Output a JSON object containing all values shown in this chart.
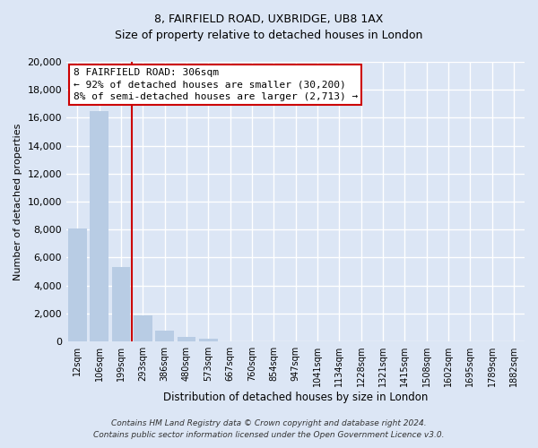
{
  "title": "8, FAIRFIELD ROAD, UXBRIDGE, UB8 1AX",
  "subtitle": "Size of property relative to detached houses in London",
  "xlabel": "Distribution of detached houses by size in London",
  "ylabel": "Number of detached properties",
  "bar_labels": [
    "12sqm",
    "106sqm",
    "199sqm",
    "293sqm",
    "386sqm",
    "480sqm",
    "573sqm",
    "667sqm",
    "760sqm",
    "854sqm",
    "947sqm",
    "1041sqm",
    "1134sqm",
    "1228sqm",
    "1321sqm",
    "1415sqm",
    "1508sqm",
    "1602sqm",
    "1695sqm",
    "1789sqm",
    "1882sqm"
  ],
  "bar_values": [
    8100,
    16500,
    5300,
    1850,
    780,
    300,
    200,
    0,
    0,
    0,
    0,
    0,
    0,
    0,
    0,
    0,
    0,
    0,
    0,
    0,
    0
  ],
  "bar_color": "#b8cce4",
  "vline_pos": 2.5,
  "annotation_title": "8 FAIRFIELD ROAD: 306sqm",
  "annotation_line1": "← 92% of detached houses are smaller (30,200)",
  "annotation_line2": "8% of semi-detached houses are larger (2,713) →",
  "annotation_box_color": "#ffffff",
  "annotation_box_edge": "#cc0000",
  "vline_color": "#cc0000",
  "ylim": [
    0,
    20000
  ],
  "yticks": [
    0,
    2000,
    4000,
    6000,
    8000,
    10000,
    12000,
    14000,
    16000,
    18000,
    20000
  ],
  "footer1": "Contains HM Land Registry data © Crown copyright and database right 2024.",
  "footer2": "Contains public sector information licensed under the Open Government Licence v3.0.",
  "bg_color": "#dce6f5",
  "grid_color": "#ffffff",
  "title_fontsize": 9,
  "subtitle_fontsize": 9
}
